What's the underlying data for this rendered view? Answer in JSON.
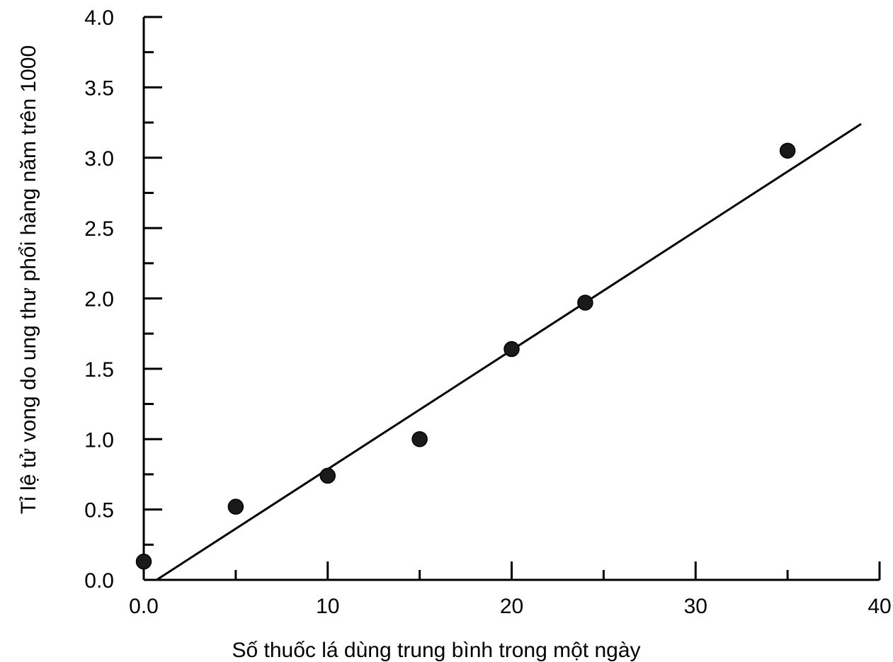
{
  "chart_data": {
    "type": "scatter",
    "title": "",
    "xlabel": "Số thuốc lá dùng trung bình trong một ngày",
    "ylabel": "Tỉ lệ tử vong do ung thư phổi hàng năm trên 1000",
    "xlim": [
      0,
      40
    ],
    "ylim": [
      0,
      4.0
    ],
    "x_ticks": [
      0,
      10,
      20,
      30,
      40
    ],
    "x_tick_labels": [
      "0.0",
      "10",
      "20",
      "30",
      "40"
    ],
    "x_minor_ticks": [
      5,
      15,
      25,
      35
    ],
    "y_ticks": [
      0,
      0.5,
      1.0,
      1.5,
      2.0,
      2.5,
      3.0,
      3.5,
      4.0
    ],
    "y_tick_labels": [
      "0.0",
      "0.5",
      "1.0",
      "1.5",
      "2.0",
      "2.5",
      "3.0",
      "3.5",
      "4.0"
    ],
    "y_minor_ticks": [
      0.25,
      0.75,
      1.25,
      1.75,
      2.25,
      2.75,
      3.25,
      3.75
    ],
    "grid": false,
    "points": [
      {
        "x": 0,
        "y": 0.13
      },
      {
        "x": 5,
        "y": 0.52
      },
      {
        "x": 10,
        "y": 0.74
      },
      {
        "x": 15,
        "y": 1.0
      },
      {
        "x": 20,
        "y": 1.64
      },
      {
        "x": 24,
        "y": 1.97
      },
      {
        "x": 35,
        "y": 3.05
      }
    ],
    "trend_line": {
      "x": [
        0.7,
        39.0
      ],
      "y": [
        0.0,
        3.24
      ]
    },
    "colors": {
      "point": "#1a1a1a",
      "line": "#000000",
      "axis": "#000000"
    }
  }
}
